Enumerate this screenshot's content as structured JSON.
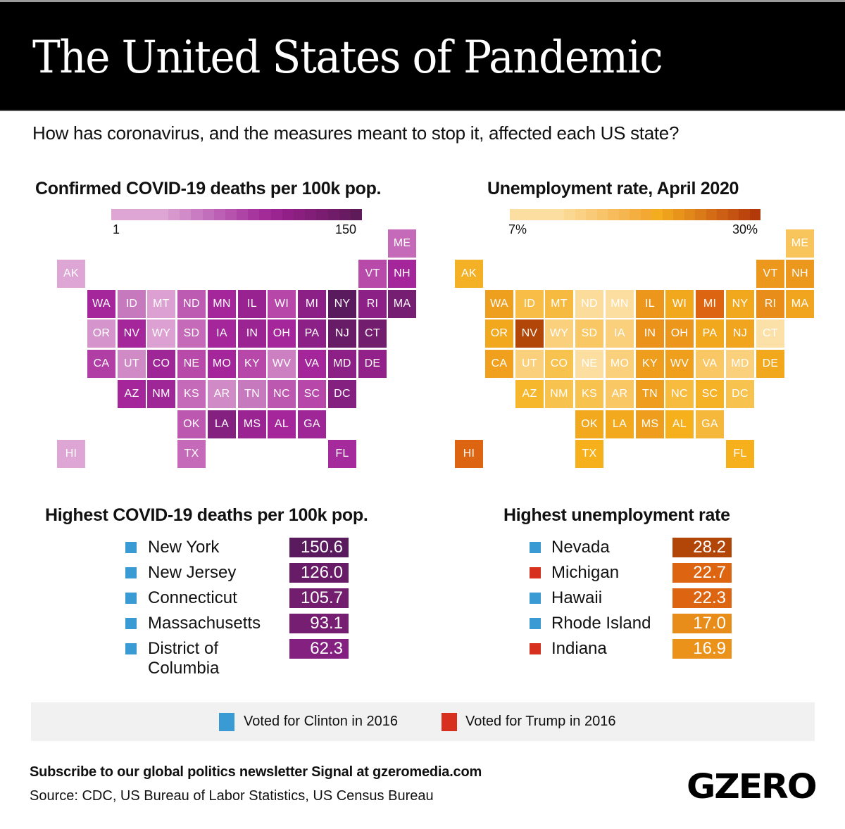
{
  "header": {
    "title": "The United States of Pandemic",
    "subtitle": "How has coronavirus, and the measures meant to stop it, affected each US state?"
  },
  "deaths_map": {
    "title": "Confirmed COVID-19 deaths per 100k pop.",
    "scale_min": "1",
    "scale_max": "150",
    "scale_colors": [
      "#dea6d4",
      "#dea6d4",
      "#dea6d4",
      "#dea6d4",
      "#dea6d4",
      "#d798ce",
      "#d08bc8",
      "#c97cc1",
      "#c26fbb",
      "#bb60b4",
      "#b553ad",
      "#ae45a6",
      "#a7379f",
      "#a22b98",
      "#9a2490",
      "#921f88",
      "#8a1f80",
      "#821e78",
      "#7a1d70",
      "#711c68",
      "#681b60",
      "#5e1a59"
    ],
    "cells": [
      {
        "abbr": "ME",
        "col": 11,
        "row": 0,
        "color": "#c46ab8"
      },
      {
        "abbr": "AK",
        "col": 0,
        "row": 1,
        "color": "#dea6d4"
      },
      {
        "abbr": "VT",
        "col": 10,
        "row": 1,
        "color": "#b84ba9"
      },
      {
        "abbr": "NH",
        "col": 11,
        "row": 1,
        "color": "#a5269b"
      },
      {
        "abbr": "WA",
        "col": 1,
        "row": 2,
        "color": "#a5269b"
      },
      {
        "abbr": "ID",
        "col": 2,
        "row": 2,
        "color": "#c779bd"
      },
      {
        "abbr": "MT",
        "col": 3,
        "row": 2,
        "color": "#dca1d2"
      },
      {
        "abbr": "ND",
        "col": 4,
        "row": 2,
        "color": "#bd5bb2"
      },
      {
        "abbr": "MN",
        "col": 5,
        "row": 2,
        "color": "#a5269b"
      },
      {
        "abbr": "IL",
        "col": 6,
        "row": 2,
        "color": "#972290"
      },
      {
        "abbr": "WI",
        "col": 7,
        "row": 2,
        "color": "#b748a9"
      },
      {
        "abbr": "MI",
        "col": 8,
        "row": 2,
        "color": "#8d2086"
      },
      {
        "abbr": "NY",
        "col": 9,
        "row": 2,
        "color": "#5a1a5e"
      },
      {
        "abbr": "RI",
        "col": 10,
        "row": 2,
        "color": "#8d2086"
      },
      {
        "abbr": "MA",
        "col": 11,
        "row": 2,
        "color": "#761e72"
      },
      {
        "abbr": "OR",
        "col": 1,
        "row": 3,
        "color": "#d595cc"
      },
      {
        "abbr": "NV",
        "col": 2,
        "row": 3,
        "color": "#a5269b"
      },
      {
        "abbr": "WY",
        "col": 3,
        "row": 3,
        "color": "#dca1d2"
      },
      {
        "abbr": "SD",
        "col": 4,
        "row": 3,
        "color": "#c46ab8"
      },
      {
        "abbr": "IA",
        "col": 5,
        "row": 3,
        "color": "#a5269b"
      },
      {
        "abbr": "IN",
        "col": 6,
        "row": 3,
        "color": "#9a2492"
      },
      {
        "abbr": "OH",
        "col": 7,
        "row": 3,
        "color": "#a5269b"
      },
      {
        "abbr": "PA",
        "col": 8,
        "row": 3,
        "color": "#8d2086"
      },
      {
        "abbr": "NJ",
        "col": 9,
        "row": 3,
        "color": "#681b66"
      },
      {
        "abbr": "CT",
        "col": 10,
        "row": 3,
        "color": "#731d6e"
      },
      {
        "abbr": "CA",
        "col": 1,
        "row": 4,
        "color": "#b03ea4"
      },
      {
        "abbr": "UT",
        "col": 2,
        "row": 4,
        "color": "#d08bc6"
      },
      {
        "abbr": "CO",
        "col": 3,
        "row": 4,
        "color": "#9f2696"
      },
      {
        "abbr": "NE",
        "col": 4,
        "row": 4,
        "color": "#b84ba9"
      },
      {
        "abbr": "MO",
        "col": 5,
        "row": 4,
        "color": "#a5269b"
      },
      {
        "abbr": "KY",
        "col": 6,
        "row": 4,
        "color": "#b748a9"
      },
      {
        "abbr": "WV",
        "col": 7,
        "row": 4,
        "color": "#cc80c2"
      },
      {
        "abbr": "VA",
        "col": 8,
        "row": 4,
        "color": "#a5269b"
      },
      {
        "abbr": "MD",
        "col": 9,
        "row": 4,
        "color": "#8d2086"
      },
      {
        "abbr": "DE",
        "col": 10,
        "row": 4,
        "color": "#922289"
      },
      {
        "abbr": "AZ",
        "col": 2,
        "row": 5,
        "color": "#a5269b"
      },
      {
        "abbr": "NM",
        "col": 3,
        "row": 5,
        "color": "#9f2696"
      },
      {
        "abbr": "KS",
        "col": 4,
        "row": 5,
        "color": "#c46ab8"
      },
      {
        "abbr": "AR",
        "col": 5,
        "row": 5,
        "color": "#d08bc6"
      },
      {
        "abbr": "TN",
        "col": 6,
        "row": 5,
        "color": "#c779bd"
      },
      {
        "abbr": "NC",
        "col": 7,
        "row": 5,
        "color": "#bc58b0"
      },
      {
        "abbr": "SC",
        "col": 8,
        "row": 5,
        "color": "#b748a9"
      },
      {
        "abbr": "DC",
        "col": 9,
        "row": 5,
        "color": "#832080"
      },
      {
        "abbr": "OK",
        "col": 4,
        "row": 6,
        "color": "#bc58b0"
      },
      {
        "abbr": "LA",
        "col": 5,
        "row": 6,
        "color": "#832080"
      },
      {
        "abbr": "MS",
        "col": 6,
        "row": 6,
        "color": "#9a2492"
      },
      {
        "abbr": "AL",
        "col": 7,
        "row": 6,
        "color": "#a5269b"
      },
      {
        "abbr": "GA",
        "col": 8,
        "row": 6,
        "color": "#9f2696"
      },
      {
        "abbr": "HI",
        "col": 0,
        "row": 7,
        "color": "#dea6d4"
      },
      {
        "abbr": "TX",
        "col": 4,
        "row": 7,
        "color": "#c46ab8"
      },
      {
        "abbr": "FL",
        "col": 9,
        "row": 7,
        "color": "#a52a9c"
      }
    ]
  },
  "unemployment_map": {
    "title": "Unemployment rate, April 2020",
    "scale_min": "7%",
    "scale_max": "30%",
    "scale_colors": [
      "#fbdea0",
      "#fbdea0",
      "#fbdea0",
      "#fbdea0",
      "#fbdea0",
      "#fbd892",
      "#fad185",
      "#f9ca77",
      "#f8c46a",
      "#f7bd5c",
      "#f6b64f",
      "#f5af40",
      "#f4a834",
      "#f4ad1f",
      "#eea11d",
      "#e8941b",
      "#e2871a",
      "#db7a18",
      "#d46c16",
      "#cc5f13",
      "#c45210",
      "#bb450c",
      "#b2390a"
    ],
    "cells": [
      {
        "abbr": "ME",
        "col": 11,
        "row": 0,
        "color": "#f8c55d"
      },
      {
        "abbr": "AK",
        "col": 0,
        "row": 1,
        "color": "#f5b125"
      },
      {
        "abbr": "VT",
        "col": 10,
        "row": 1,
        "color": "#ec981c"
      },
      {
        "abbr": "NH",
        "col": 11,
        "row": 1,
        "color": "#ec981c"
      },
      {
        "abbr": "WA",
        "col": 1,
        "row": 2,
        "color": "#ee9f1d"
      },
      {
        "abbr": "ID",
        "col": 2,
        "row": 2,
        "color": "#f7bd46"
      },
      {
        "abbr": "MT",
        "col": 3,
        "row": 2,
        "color": "#f6ba40"
      },
      {
        "abbr": "ND",
        "col": 4,
        "row": 2,
        "color": "#fbdc9a"
      },
      {
        "abbr": "MN",
        "col": 5,
        "row": 2,
        "color": "#fbdea0"
      },
      {
        "abbr": "IL",
        "col": 6,
        "row": 2,
        "color": "#ec961b"
      },
      {
        "abbr": "WI",
        "col": 7,
        "row": 2,
        "color": "#f2a81d"
      },
      {
        "abbr": "MI",
        "col": 8,
        "row": 2,
        "color": "#dd6512"
      },
      {
        "abbr": "NY",
        "col": 9,
        "row": 2,
        "color": "#f2a81d"
      },
      {
        "abbr": "RI",
        "col": 10,
        "row": 2,
        "color": "#e88c1a"
      },
      {
        "abbr": "MA",
        "col": 11,
        "row": 2,
        "color": "#f1a41d"
      },
      {
        "abbr": "OR",
        "col": 1,
        "row": 3,
        "color": "#f2a81d"
      },
      {
        "abbr": "NV",
        "col": 2,
        "row": 3,
        "color": "#b24508"
      },
      {
        "abbr": "WY",
        "col": 3,
        "row": 3,
        "color": "#fad07c"
      },
      {
        "abbr": "SD",
        "col": 4,
        "row": 3,
        "color": "#f9c864"
      },
      {
        "abbr": "IA",
        "col": 5,
        "row": 3,
        "color": "#fad07c"
      },
      {
        "abbr": "IN",
        "col": 6,
        "row": 3,
        "color": "#eb921b"
      },
      {
        "abbr": "OH",
        "col": 7,
        "row": 3,
        "color": "#ec971b"
      },
      {
        "abbr": "PA",
        "col": 8,
        "row": 3,
        "color": "#f2a81d"
      },
      {
        "abbr": "NJ",
        "col": 9,
        "row": 3,
        "color": "#f1a41d"
      },
      {
        "abbr": "CT",
        "col": 10,
        "row": 3,
        "color": "#fbe0a8"
      },
      {
        "abbr": "CA",
        "col": 1,
        "row": 4,
        "color": "#f0a01d"
      },
      {
        "abbr": "UT",
        "col": 2,
        "row": 4,
        "color": "#fad07c"
      },
      {
        "abbr": "CO",
        "col": 3,
        "row": 4,
        "color": "#f8c24f"
      },
      {
        "abbr": "NE",
        "col": 4,
        "row": 4,
        "color": "#fbdea0"
      },
      {
        "abbr": "MO",
        "col": 5,
        "row": 4,
        "color": "#fad07c"
      },
      {
        "abbr": "KY",
        "col": 6,
        "row": 4,
        "color": "#ee9e1c"
      },
      {
        "abbr": "WV",
        "col": 7,
        "row": 4,
        "color": "#ef9f1c"
      },
      {
        "abbr": "VA",
        "col": 8,
        "row": 4,
        "color": "#f9c864"
      },
      {
        "abbr": "MD",
        "col": 9,
        "row": 4,
        "color": "#fad07c"
      },
      {
        "abbr": "DE",
        "col": 10,
        "row": 4,
        "color": "#f2a81d"
      },
      {
        "abbr": "AZ",
        "col": 2,
        "row": 5,
        "color": "#f6b72d"
      },
      {
        "abbr": "NM",
        "col": 3,
        "row": 5,
        "color": "#f8c24f"
      },
      {
        "abbr": "KS",
        "col": 4,
        "row": 5,
        "color": "#f8c24f"
      },
      {
        "abbr": "AR",
        "col": 5,
        "row": 5,
        "color": "#f9c864"
      },
      {
        "abbr": "TN",
        "col": 6,
        "row": 5,
        "color": "#ee9e1c"
      },
      {
        "abbr": "NC",
        "col": 7,
        "row": 5,
        "color": "#f7bc3d"
      },
      {
        "abbr": "SC",
        "col": 8,
        "row": 5,
        "color": "#f5b226"
      },
      {
        "abbr": "DC",
        "col": 9,
        "row": 5,
        "color": "#f8c24f"
      },
      {
        "abbr": "OK",
        "col": 4,
        "row": 6,
        "color": "#f3a91d"
      },
      {
        "abbr": "LA",
        "col": 5,
        "row": 6,
        "color": "#f3a91d"
      },
      {
        "abbr": "MS",
        "col": 6,
        "row": 6,
        "color": "#ee9e1c"
      },
      {
        "abbr": "AL",
        "col": 7,
        "row": 6,
        "color": "#f5b01c"
      },
      {
        "abbr": "GA",
        "col": 8,
        "row": 6,
        "color": "#f6b83a"
      },
      {
        "abbr": "HI",
        "col": 0,
        "row": 7,
        "color": "#dd6512"
      },
      {
        "abbr": "TX",
        "col": 4,
        "row": 7,
        "color": "#f5b01c"
      },
      {
        "abbr": "FL",
        "col": 9,
        "row": 7,
        "color": "#f5b01c"
      }
    ]
  },
  "deaths_top": {
    "title": "Highest COVID-19 deaths per 100k pop.",
    "items": [
      {
        "name": "New York",
        "value": "150.6",
        "party": "clinton",
        "box_color": "#5a1a5e"
      },
      {
        "name": "New Jersey",
        "value": "126.0",
        "party": "clinton",
        "box_color": "#681b66"
      },
      {
        "name": "Connecticut",
        "value": "105.7",
        "party": "clinton",
        "box_color": "#731d6e"
      },
      {
        "name": "Massachusetts",
        "value": "93.1",
        "party": "clinton",
        "box_color": "#761e72"
      },
      {
        "name": "District of\nColumbia",
        "value": "62.3",
        "party": "clinton",
        "box_color": "#832080"
      }
    ]
  },
  "unemployment_top": {
    "title": "Highest unemployment rate",
    "items": [
      {
        "name": "Nevada",
        "value": "28.2",
        "party": "clinton",
        "box_color": "#b24508"
      },
      {
        "name": "Michigan",
        "value": "22.7",
        "party": "trump",
        "box_color": "#dd6512"
      },
      {
        "name": "Hawaii",
        "value": "22.3",
        "party": "clinton",
        "box_color": "#dd6512"
      },
      {
        "name": "Rhode Island",
        "value": "17.0",
        "party": "clinton",
        "box_color": "#e88c1a"
      },
      {
        "name": "Indiana",
        "value": "16.9",
        "party": "trump",
        "box_color": "#eb921b"
      }
    ]
  },
  "legend": {
    "clinton_label": "Voted for Clinton in 2016",
    "trump_label": "Voted for Trump in 2016",
    "clinton_color": "#3a9ad4",
    "trump_color": "#d8301e"
  },
  "footer": {
    "subscribe": "Subscribe to our global politics newsletter Signal at gzeromedia.com",
    "source": "Source: CDC, US Bureau of Labor Statistics, US Census Bureau",
    "logo": "GZERO"
  },
  "chart_data": [
    {
      "type": "heatmap",
      "title": "Confirmed COVID-19 deaths per 100k pop.",
      "scale_range": [
        1,
        150
      ],
      "note": "US state tile grid map; color intensity encodes deaths per 100k",
      "top5": {
        "New York": 150.6,
        "New Jersey": 126.0,
        "Connecticut": 105.7,
        "Massachusetts": 93.1,
        "District of Columbia": 62.3
      }
    },
    {
      "type": "heatmap",
      "title": "Unemployment rate, April 2020",
      "scale_range": [
        "7%",
        "30%"
      ],
      "note": "US state tile grid map; color intensity encodes unemployment rate",
      "top5": {
        "Nevada": 28.2,
        "Michigan": 22.7,
        "Hawaii": 22.3,
        "Rhode Island": 17.0,
        "Indiana": 16.9
      }
    }
  ]
}
